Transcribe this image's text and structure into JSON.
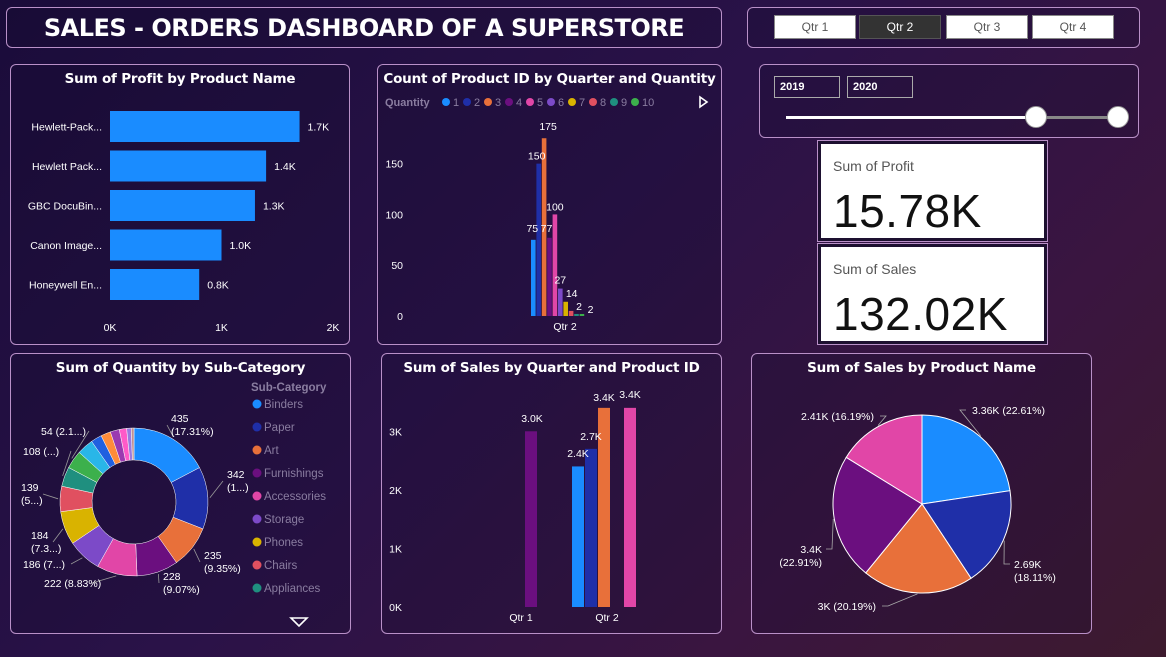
{
  "title": "SALES - ORDERS DASHBOARD OF A SUPERSTORE",
  "quarter_filter": [
    {
      "label": "Qtr 1",
      "selected": false
    },
    {
      "label": "Qtr 2",
      "selected": true
    },
    {
      "label": "Qtr 3",
      "selected": false
    },
    {
      "label": "Qtr 4",
      "selected": false
    }
  ],
  "year_slider": {
    "start": "2019",
    "end": "2020"
  },
  "kpi": {
    "profit": {
      "label": "Sum of Profit",
      "value": "15.78K"
    },
    "sales": {
      "label": "Sum of Sales",
      "value": "132.02K"
    }
  },
  "colors": {
    "accent": "#1a8cff",
    "blue": "#1a8cff",
    "navy": "#1f2fa8",
    "orange": "#e8703a",
    "purple": "#6b0f7f",
    "pink": "#e146a7",
    "violet": "#7c4ac8",
    "gold": "#d9b300",
    "red": "#e05060",
    "teal": "#1f8f7f",
    "green": "#3cb04c"
  },
  "chart_data": [
    {
      "id": "profit-by-product",
      "type": "bar",
      "orientation": "horizontal",
      "title": "Sum of Profit by Product Name",
      "categories": [
        "Hewlett-Pack...",
        "Hewlett Pack...",
        "GBC DocuBin...",
        "Canon Image...",
        "Honeywell En..."
      ],
      "values": [
        1700,
        1400,
        1300,
        1000,
        800
      ],
      "data_labels": [
        "1.7K",
        "1.4K",
        "1.3K",
        "1.0K",
        "0.8K"
      ],
      "xlim": [
        0,
        2000
      ],
      "xticks": [
        "0K",
        "1K",
        "2K"
      ],
      "color": "#1a8cff"
    },
    {
      "id": "count-by-quarter-quantity",
      "type": "bar",
      "title": "Count of Product ID by Quarter and Quantity",
      "legend_title": "Quantity",
      "categories": [
        "Qtr 2"
      ],
      "series": [
        {
          "name": "1",
          "values": [
            75
          ],
          "color": "#1a8cff"
        },
        {
          "name": "2",
          "values": [
            150
          ],
          "color": "#1f2fa8"
        },
        {
          "name": "3",
          "values": [
            175
          ],
          "color": "#e8703a"
        },
        {
          "name": "4",
          "values": [
            77
          ],
          "color": "#6b0f7f"
        },
        {
          "name": "5",
          "values": [
            100
          ],
          "color": "#e146a7"
        },
        {
          "name": "6",
          "values": [
            27
          ],
          "color": "#7c4ac8"
        },
        {
          "name": "7",
          "values": [
            14
          ],
          "color": "#d9b300"
        },
        {
          "name": "8",
          "values": [
            5
          ],
          "color": "#e05060"
        },
        {
          "name": "9",
          "values": [
            2
          ],
          "color": "#1f8f7f"
        },
        {
          "name": "10",
          "values": [
            2
          ],
          "color": "#3cb04c"
        }
      ],
      "data_labels": [
        "75",
        "150",
        "175",
        "77",
        "100",
        "27",
        "14",
        "2",
        "2"
      ],
      "yticks": [
        "0",
        "50",
        "100",
        "150"
      ],
      "ylim": [
        0,
        190
      ]
    },
    {
      "id": "quantity-by-subcategory",
      "type": "pie",
      "donut": true,
      "title": "Sum of Quantity by Sub-Category",
      "legend_title": "Sub-Category",
      "legend": [
        "Binders",
        "Paper",
        "Art",
        "Furnishings",
        "Accessories",
        "Storage",
        "Phones",
        "Chairs",
        "Appliances"
      ],
      "slices": [
        {
          "name": "Binders",
          "value": 435,
          "color": "#1a8cff"
        },
        {
          "name": "Paper",
          "value": 342,
          "color": "#1f2fa8"
        },
        {
          "name": "Art",
          "value": 235,
          "color": "#e8703a"
        },
        {
          "name": "Furnishings",
          "value": 228,
          "color": "#6b0f7f"
        },
        {
          "name": "Accessories",
          "value": 222,
          "color": "#e146a7"
        },
        {
          "name": "Storage",
          "value": 186,
          "color": "#7c4ac8"
        },
        {
          "name": "Phones",
          "value": 184,
          "color": "#d9b300"
        },
        {
          "name": "Chairs",
          "value": 139,
          "color": "#e05060"
        },
        {
          "name": "Appliances",
          "value": 108,
          "color": "#1f8f7f"
        },
        {
          "name": "",
          "value": 100,
          "color": "#3cb04c"
        },
        {
          "name": "",
          "value": 90,
          "color": "#29b6e8"
        },
        {
          "name": "",
          "value": 60,
          "color": "#2060e0"
        },
        {
          "name": "",
          "value": 54,
          "color": "#ff8c3a"
        },
        {
          "name": "",
          "value": 50,
          "color": "#9a3ab0"
        },
        {
          "name": "",
          "value": 40,
          "color": "#ff5ac8"
        },
        {
          "name": "",
          "value": 25,
          "color": "#9a7ae0"
        },
        {
          "name": "",
          "value": 15,
          "color": "#c09090"
        }
      ],
      "labels": [
        {
          "text": "435",
          "text2": "(17.31%)"
        },
        {
          "text": "342",
          "text2": "(1...)"
        },
        {
          "text": "235",
          "text2": "(9.35%)"
        },
        {
          "text": "228",
          "text2": "(9.07%)"
        },
        {
          "text": "222 (8.83%)",
          "text2": ""
        },
        {
          "text": "186 (7...)",
          "text2": ""
        },
        {
          "text": "184",
          "text2": "(7.3...)"
        },
        {
          "text": "139",
          "text2": "(5...)"
        },
        {
          "text": "108 (...)",
          "text2": ""
        },
        {
          "text": "54 (2.1...)",
          "text2": ""
        }
      ]
    },
    {
      "id": "sales-by-quarter-product",
      "type": "bar",
      "title": "Sum of Sales by Quarter and Product ID",
      "categories": [
        "Qtr 1",
        "Qtr 2"
      ],
      "bars": [
        {
          "category": "Qtr 1",
          "value": 3000,
          "label": "3.0K",
          "color": "#6b0f7f"
        },
        {
          "category": "Qtr 2",
          "value": 2400,
          "label": "2.4K",
          "color": "#1a8cff"
        },
        {
          "category": "Qtr 2",
          "value": 2700,
          "label": "2.7K",
          "color": "#1f2fa8"
        },
        {
          "category": "Qtr 2",
          "value": 3400,
          "label": "3.4K",
          "color": "#e8703a"
        },
        {
          "category": "Qtr 2",
          "value": 3400,
          "label": "3.4K",
          "color": "#e146a7"
        }
      ],
      "yticks": [
        "0K",
        "1K",
        "2K",
        "3K"
      ],
      "ylim": [
        0,
        3500
      ]
    },
    {
      "id": "sales-by-product",
      "type": "pie",
      "title": "Sum of Sales by Product Name",
      "slices": [
        {
          "value": 3360,
          "label": "3.36K (22.61%)",
          "color": "#1a8cff"
        },
        {
          "value": 2690,
          "label": "2.69K",
          "label2": "(18.11%)",
          "color": "#1f2fa8"
        },
        {
          "value": 3000,
          "label": "3K (20.19%)",
          "color": "#e8703a"
        },
        {
          "value": 3400,
          "label": "3.4K",
          "label2": "(22.91%)",
          "color": "#6b0f7f"
        },
        {
          "value": 2410,
          "label": "2.41K (16.19%)",
          "color": "#e146a7"
        }
      ]
    }
  ]
}
